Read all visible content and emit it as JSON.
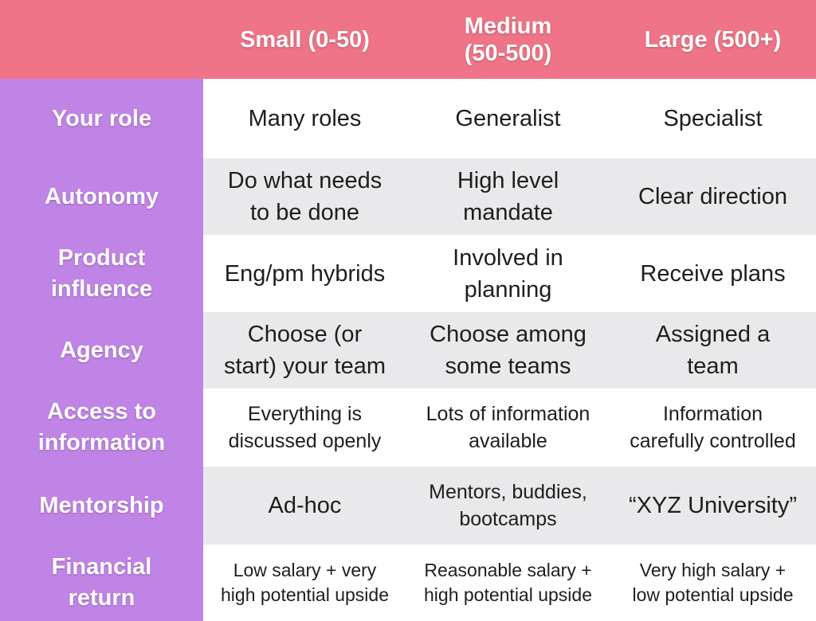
{
  "header": {
    "corner": "",
    "columns": [
      "Small (0-50)",
      "Medium\n(50-500)",
      "Large (500+)"
    ]
  },
  "rows": [
    {
      "label": "Your role",
      "cells": [
        "Many roles",
        "Generalist",
        "Specialist"
      ]
    },
    {
      "label": "Autonomy",
      "cells": [
        "Do what needs\nto be done",
        "High level\nmandate",
        "Clear direction"
      ]
    },
    {
      "label": "Product\ninfluence",
      "cells": [
        "Eng/pm hybrids",
        "Involved in\nplanning",
        "Receive plans"
      ]
    },
    {
      "label": "Agency",
      "cells": [
        "Choose (or\nstart) your team",
        "Choose among\nsome teams",
        "Assigned a\nteam"
      ]
    },
    {
      "label": "Access to\ninformation",
      "cells": [
        "Everything is\ndiscussed openly",
        "Lots of information\navailable",
        "Information\ncarefully controlled"
      ]
    },
    {
      "label": "Mentorship",
      "cells": [
        "Ad-hoc",
        "Mentors, buddies,\nbootcamps",
        "“XYZ University”"
      ]
    },
    {
      "label": "Financial\nreturn",
      "cells": [
        "Low salary + very\nhigh potential upside",
        "Reasonable salary +\nhigh potential upside",
        "Very high salary +\nlow potential upside"
      ]
    }
  ],
  "colors": {
    "header_bg": "#f07487",
    "row_label_bg": "#c084e6",
    "row_alt_bg": "#e9e9eb"
  }
}
